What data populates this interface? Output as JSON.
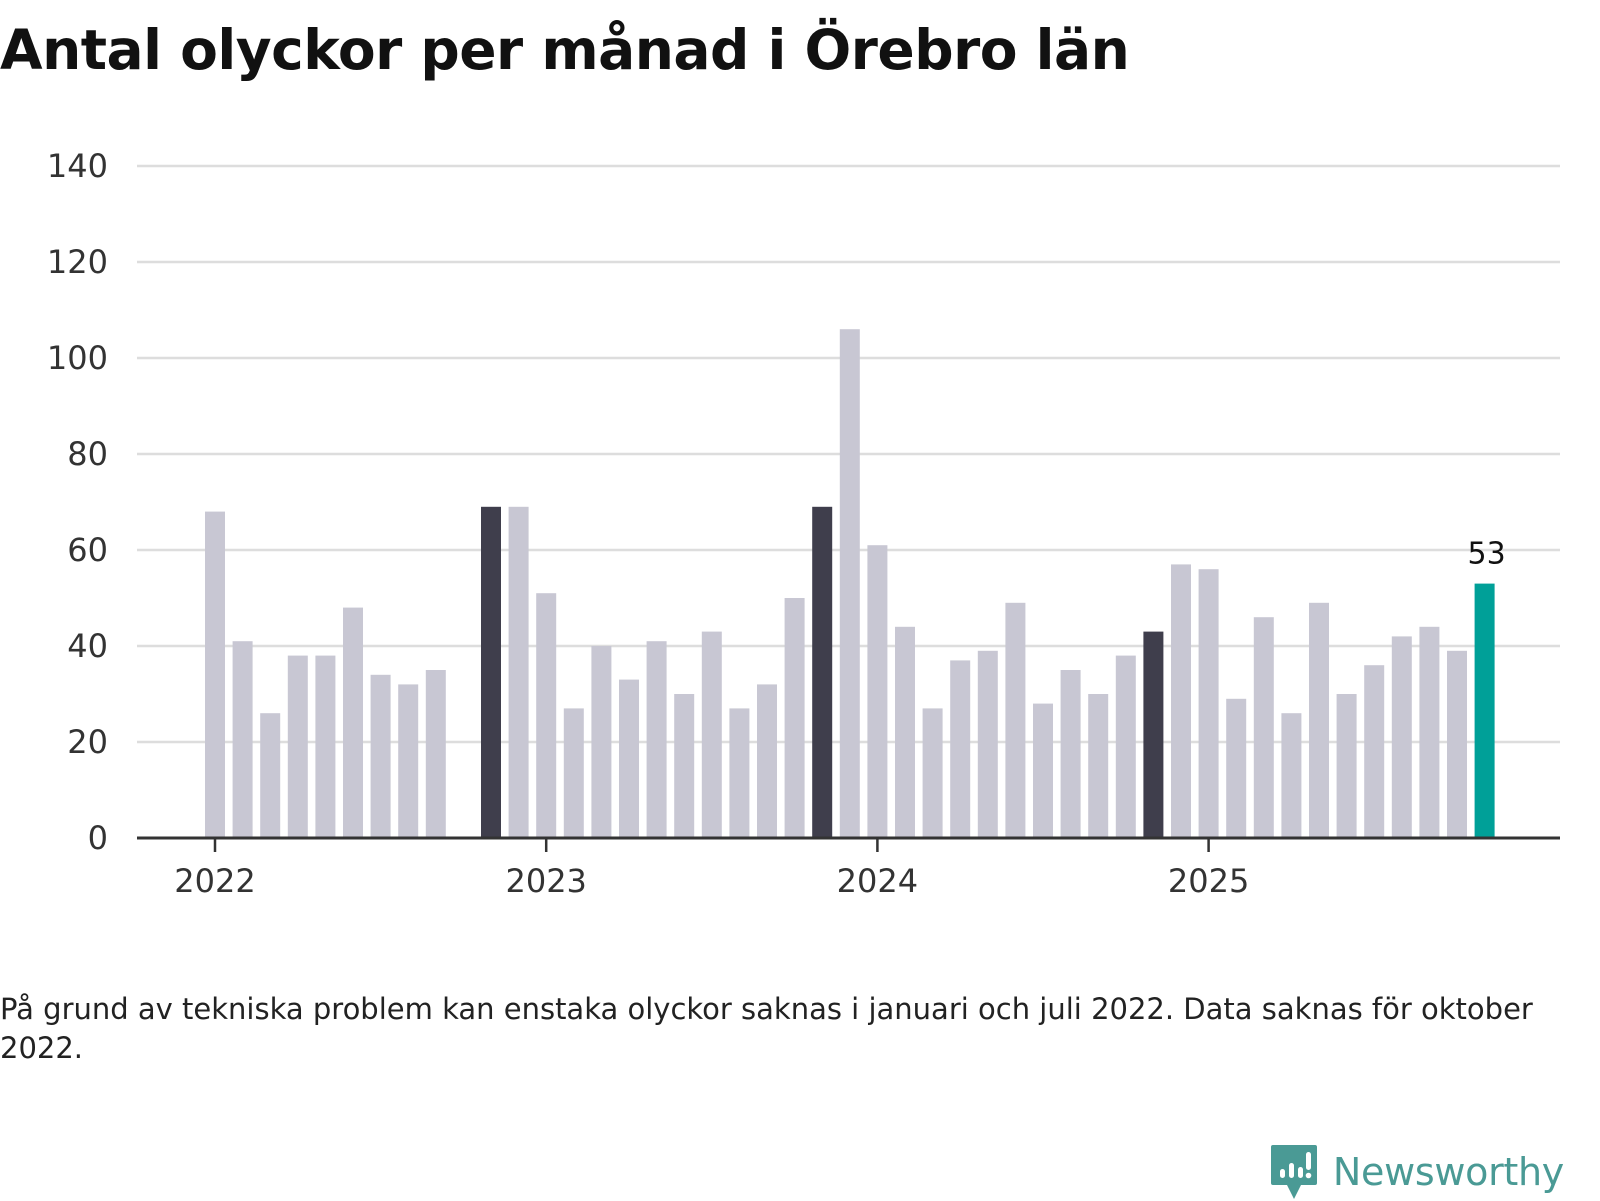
{
  "title": "Antal olyckor per månad i Örebro län",
  "footnote": "På grund av tekniska problem kan enstaka olyckor saknas i januari och juli 2022. Data saknas för oktober 2022.",
  "brand": {
    "name": "Newsworthy",
    "icon": "newsworthy-logo-icon"
  },
  "colors": {
    "bar": "#c8c7d3",
    "january": "#3f3e4c",
    "latest": "#00a098",
    "grid": "#dddddd",
    "axis": "#333333"
  },
  "chart_data": {
    "type": "bar",
    "title": "Antal olyckor per månad i Örebro län",
    "xlabel": "",
    "ylabel": "",
    "ylim": [
      0,
      140
    ],
    "yticks": [
      0,
      20,
      40,
      60,
      80,
      100,
      120,
      140
    ],
    "xticks": [
      {
        "label": "2022",
        "month": "2022-01"
      },
      {
        "label": "2023",
        "month": "2023-01"
      },
      {
        "label": "2024",
        "month": "2024-01"
      },
      {
        "label": "2025",
        "month": "2025-01"
      }
    ],
    "categories": [
      "2022-01",
      "2022-02",
      "2022-03",
      "2022-04",
      "2022-05",
      "2022-06",
      "2022-07",
      "2022-08",
      "2022-09",
      "2022-10",
      "2022-11",
      "2022-12",
      "2023-01",
      "2023-02",
      "2023-03",
      "2023-04",
      "2023-05",
      "2023-06",
      "2023-07",
      "2023-08",
      "2023-09",
      "2023-10",
      "2023-11",
      "2023-12",
      "2024-01",
      "2024-02",
      "2024-03",
      "2024-04",
      "2024-05",
      "2024-06",
      "2024-07",
      "2024-08",
      "2024-09",
      "2024-10",
      "2024-11",
      "2024-12",
      "2025-01",
      "2025-02",
      "2025-03",
      "2025-04",
      "2025-05",
      "2025-06",
      "2025-07",
      "2025-08",
      "2025-09",
      "2025-10",
      "2025-11"
    ],
    "values": [
      68,
      41,
      26,
      38,
      38,
      48,
      34,
      32,
      35,
      null,
      69,
      69,
      51,
      27,
      40,
      33,
      41,
      30,
      43,
      27,
      32,
      50,
      69,
      106,
      61,
      44,
      27,
      37,
      39,
      49,
      28,
      35,
      30,
      38,
      43,
      57,
      56,
      29,
      46,
      26,
      49,
      30,
      36,
      42,
      44,
      39,
      53
    ],
    "highlight": [
      {
        "category": "2022-11",
        "style": "january"
      },
      {
        "category": "2023-11",
        "style": "january"
      },
      {
        "category": "2024-11",
        "style": "january"
      },
      {
        "category": "2025-11",
        "style": "latest"
      }
    ],
    "annotations": [
      {
        "category": "2025-11",
        "text": "53"
      }
    ]
  }
}
